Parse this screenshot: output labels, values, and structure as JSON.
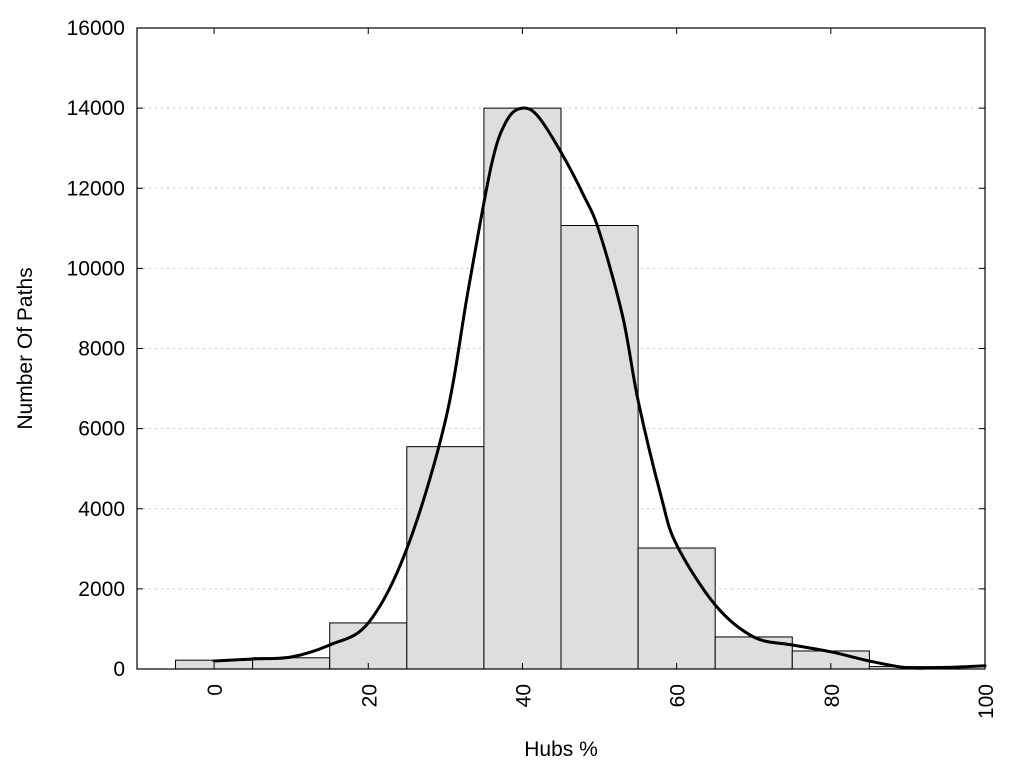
{
  "chart_data": {
    "type": "bar",
    "title": "",
    "xlabel": "Hubs %",
    "ylabel": "Number Of Paths",
    "xlim": [
      -10,
      100
    ],
    "ylim": [
      0,
      16000
    ],
    "grid": "horizontal-dotted",
    "legend": "none",
    "xticks": [
      0,
      20,
      40,
      60,
      80,
      100
    ],
    "yticks": [
      0,
      2000,
      4000,
      6000,
      8000,
      10000,
      12000,
      14000,
      16000
    ],
    "bins": [
      {
        "center": 0,
        "width": 10,
        "value": 220
      },
      {
        "center": 10,
        "width": 10,
        "value": 280
      },
      {
        "center": 20,
        "width": 10,
        "value": 1150
      },
      {
        "center": 30,
        "width": 10,
        "value": 5550
      },
      {
        "center": 40,
        "width": 10,
        "value": 14000
      },
      {
        "center": 50,
        "width": 10,
        "value": 11070
      },
      {
        "center": 60,
        "width": 10,
        "value": 3020
      },
      {
        "center": 70,
        "width": 10,
        "value": 800
      },
      {
        "center": 80,
        "width": 10,
        "value": 450
      },
      {
        "center": 90,
        "width": 10,
        "value": 60
      }
    ],
    "smooth_curve": {
      "x": [
        0,
        5,
        10,
        15,
        20,
        25,
        30,
        33,
        36,
        38,
        40,
        42,
        45,
        48,
        50,
        53,
        55,
        58,
        60,
        65,
        70,
        75,
        80,
        85,
        90,
        95,
        100
      ],
      "y": [
        200,
        250,
        300,
        600,
        1150,
        3000,
        6200,
        9500,
        12600,
        13700,
        14000,
        13800,
        12900,
        11800,
        10900,
        8800,
        6700,
        4300,
        3100,
        1600,
        800,
        600,
        430,
        200,
        30,
        40,
        80
      ]
    }
  }
}
